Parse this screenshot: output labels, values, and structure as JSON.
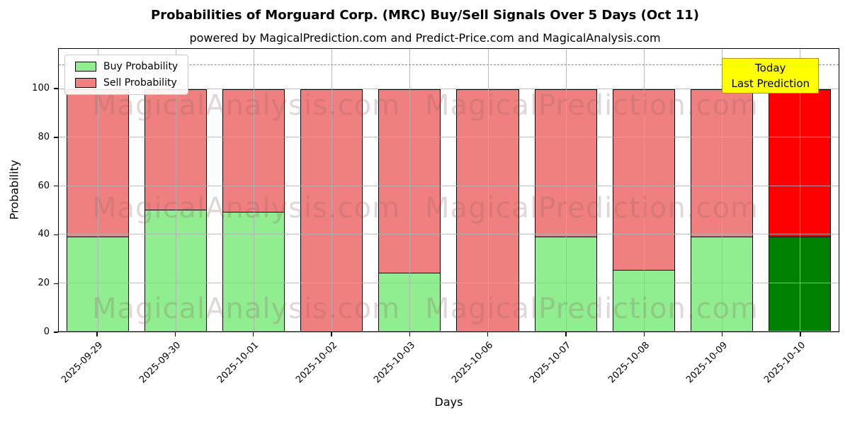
{
  "figure": {
    "subtitle": "powered by MagicalPrediction.com and Predict-Price.com and MagicalAnalysis.com"
  },
  "chart_data": {
    "type": "bar",
    "stacked": true,
    "title": "Probabilities of Morguard Corp. (MRC) Buy/Sell Signals Over 5 Days (Oct 11)",
    "xlabel": "Days",
    "ylabel": "Probability",
    "categories": [
      "2025-09-29",
      "2025-09-30",
      "2025-10-01",
      "2025-10-02",
      "2025-10-03",
      "2025-10-06",
      "2025-10-07",
      "2025-10-08",
      "2025-10-09",
      "2025-10-10"
    ],
    "series": [
      {
        "name": "Buy Probability",
        "color": "#90ee90",
        "values": [
          39,
          50,
          49,
          0,
          24,
          0,
          39,
          25,
          39,
          39
        ]
      },
      {
        "name": "Sell Probability",
        "color": "#f08080",
        "values": [
          61,
          50,
          51,
          100,
          76,
          100,
          61,
          75,
          61,
          61
        ]
      }
    ],
    "last_bar_override": {
      "buy_color": "#008000",
      "sell_color": "#ff0000"
    },
    "yticks": [
      0,
      20,
      40,
      60,
      80,
      100
    ],
    "ylim": [
      0,
      116.6
    ],
    "dashed_line_y": 110,
    "grid": true,
    "legend_position": "upper-left"
  },
  "annotation_box": {
    "line1": "Today",
    "line2": "Last Prediction",
    "bg_color": "#ffff00",
    "border_color": "#bf8f00"
  },
  "watermarks": {
    "left_text": "MagicalAnalysis.com",
    "right_text": "MagicalPrediction.com"
  }
}
